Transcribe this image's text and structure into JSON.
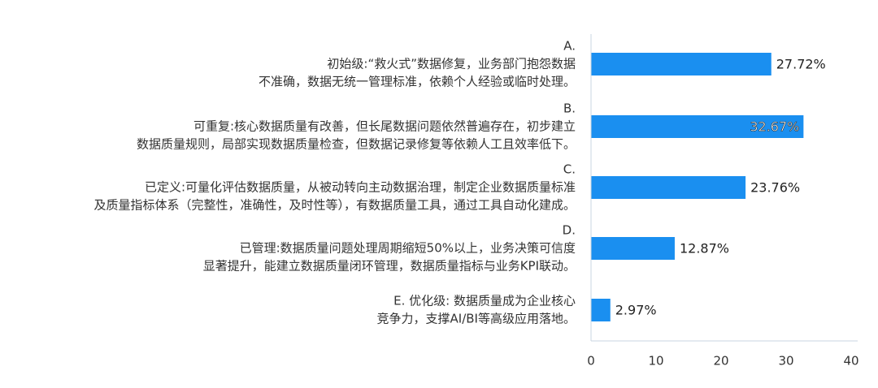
{
  "chart_data": {
    "type": "bar",
    "orientation": "horizontal",
    "categories": [
      [
        "A.",
        "初始级:“救火式”数据修复，业务部门抱怨数据",
        "不准确，数据无统一管理标准，依赖个人经验或临时处理。"
      ],
      [
        "B.",
        "可重复:核心数据质量有改善，但长尾数据问题依然普遍存在，初步建立",
        "数据质量规则，局部实现数据质量检查，但数据记录修复等依赖人工且效率低下。"
      ],
      [
        "C.",
        "已定义:可量化评估数据质量，从被动转向主动数据治理，制定企业数据质量标准",
        "及质量指标体系（完整性，准确性，及时性等），有数据质量工具，通过工具自动化建成。"
      ],
      [
        "D.",
        "已管理:数据质量问题处理周期缩短50%以上，业务决策可信度",
        "显著提升，能建立数据质量闭环管理，数据质量指标与业务KPI联动。"
      ],
      [
        "E. 优化级: 数据质量成为企业核心",
        "竞争力，支撑AI/BI等高级应用落地。"
      ]
    ],
    "values": [
      27.72,
      32.67,
      23.76,
      12.87,
      2.97
    ],
    "data_labels": [
      "27.72%",
      "32.67%",
      "23.76%",
      "12.87%",
      "2.97%"
    ],
    "xlim": [
      0,
      40
    ],
    "xticks": [
      "0",
      "10",
      "20",
      "30",
      "40"
    ],
    "bar_color": "#1a8ff0",
    "grid": false,
    "title": "",
    "xlabel": "",
    "ylabel": ""
  }
}
